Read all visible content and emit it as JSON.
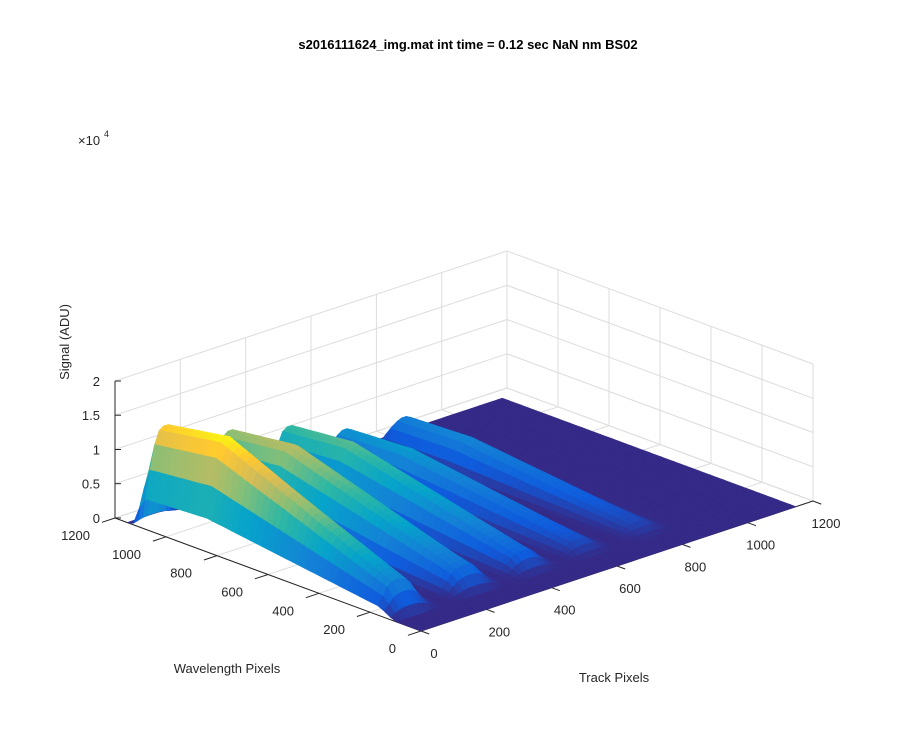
{
  "chart_data": {
    "type": "surface",
    "title": "s2016111624_img.mat int time = 0.12 sec  NaN nm BS02",
    "xlabel": "Track Pixels",
    "ylabel": "Wavelength Pixels",
    "zlabel": "Signal (ADU)",
    "z_exponent_label": "×10",
    "z_exponent_power": "4",
    "x_ticks": [
      "0",
      "200",
      "400",
      "600",
      "800",
      "1000",
      "1200"
    ],
    "y_ticks": [
      "0",
      "200",
      "400",
      "600",
      "800",
      "1000",
      "1200"
    ],
    "z_ticks": [
      "0",
      "0.5",
      "1",
      "1.5",
      "2"
    ],
    "xlim": [
      0,
      1200
    ],
    "ylim": [
      0,
      1200
    ],
    "zlim": [
      0,
      20000
    ],
    "grid": true,
    "colormap": [
      "#352a87",
      "#0f5cdd",
      "#1481d6",
      "#06a4ca",
      "#2eb7a4",
      "#87bf77",
      "#d1bb59",
      "#fec832",
      "#f9fb0e"
    ],
    "x_domain": [
      0,
      1150
    ],
    "peaks": [
      {
        "track_center": 60,
        "track_width": 110,
        "signal_max": 15800
      },
      {
        "track_center": 260,
        "track_width": 110,
        "signal_max": 11500
      },
      {
        "track_center": 440,
        "track_width": 100,
        "signal_max": 9000
      },
      {
        "track_center": 610,
        "track_width": 90,
        "signal_max": 5500
      },
      {
        "track_center": 790,
        "track_width": 90,
        "signal_max": 4300
      }
    ]
  }
}
